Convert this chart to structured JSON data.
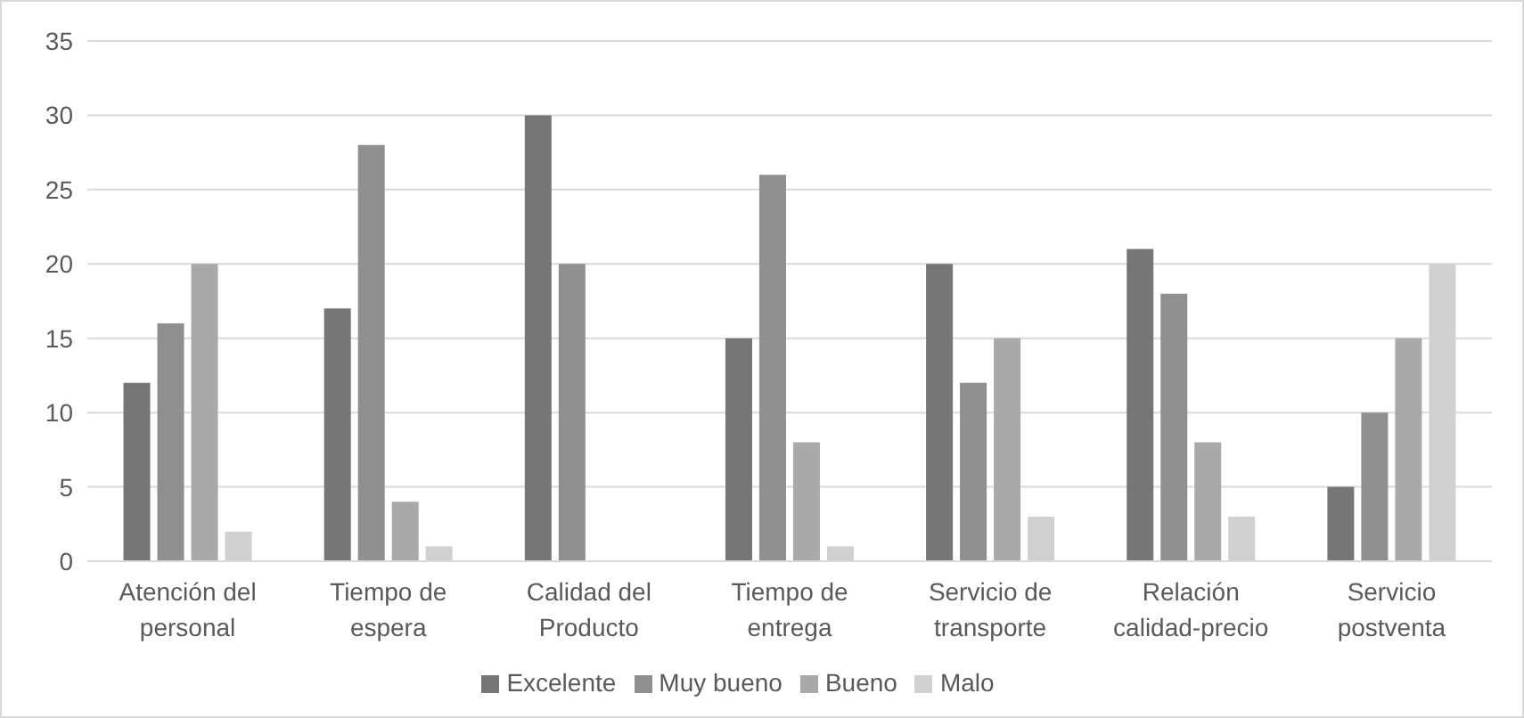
{
  "chart_data": {
    "type": "bar",
    "categories": [
      "Atención del personal",
      "Tiempo de espera",
      "Calidad del Producto",
      "Tiempo de entrega",
      "Servicio de transporte",
      "Relación calidad-precio",
      "Servicio postventa"
    ],
    "series": [
      {
        "name": "Excelente",
        "color": "#767676",
        "values": [
          12,
          17,
          30,
          15,
          20,
          21,
          5
        ]
      },
      {
        "name": "Muy bueno",
        "color": "#8f8f8f",
        "values": [
          16,
          28,
          20,
          26,
          12,
          18,
          10
        ]
      },
      {
        "name": "Bueno",
        "color": "#a9a9a9",
        "values": [
          20,
          4,
          null,
          8,
          15,
          8,
          15
        ]
      },
      {
        "name": "Malo",
        "color": "#d0d0d0",
        "values": [
          2,
          1,
          null,
          1,
          3,
          3,
          20
        ]
      }
    ],
    "ylim": [
      0,
      35
    ],
    "yticks": [
      0,
      5,
      10,
      15,
      20,
      25,
      30,
      35
    ],
    "grid": "y",
    "legend": "bottom"
  }
}
